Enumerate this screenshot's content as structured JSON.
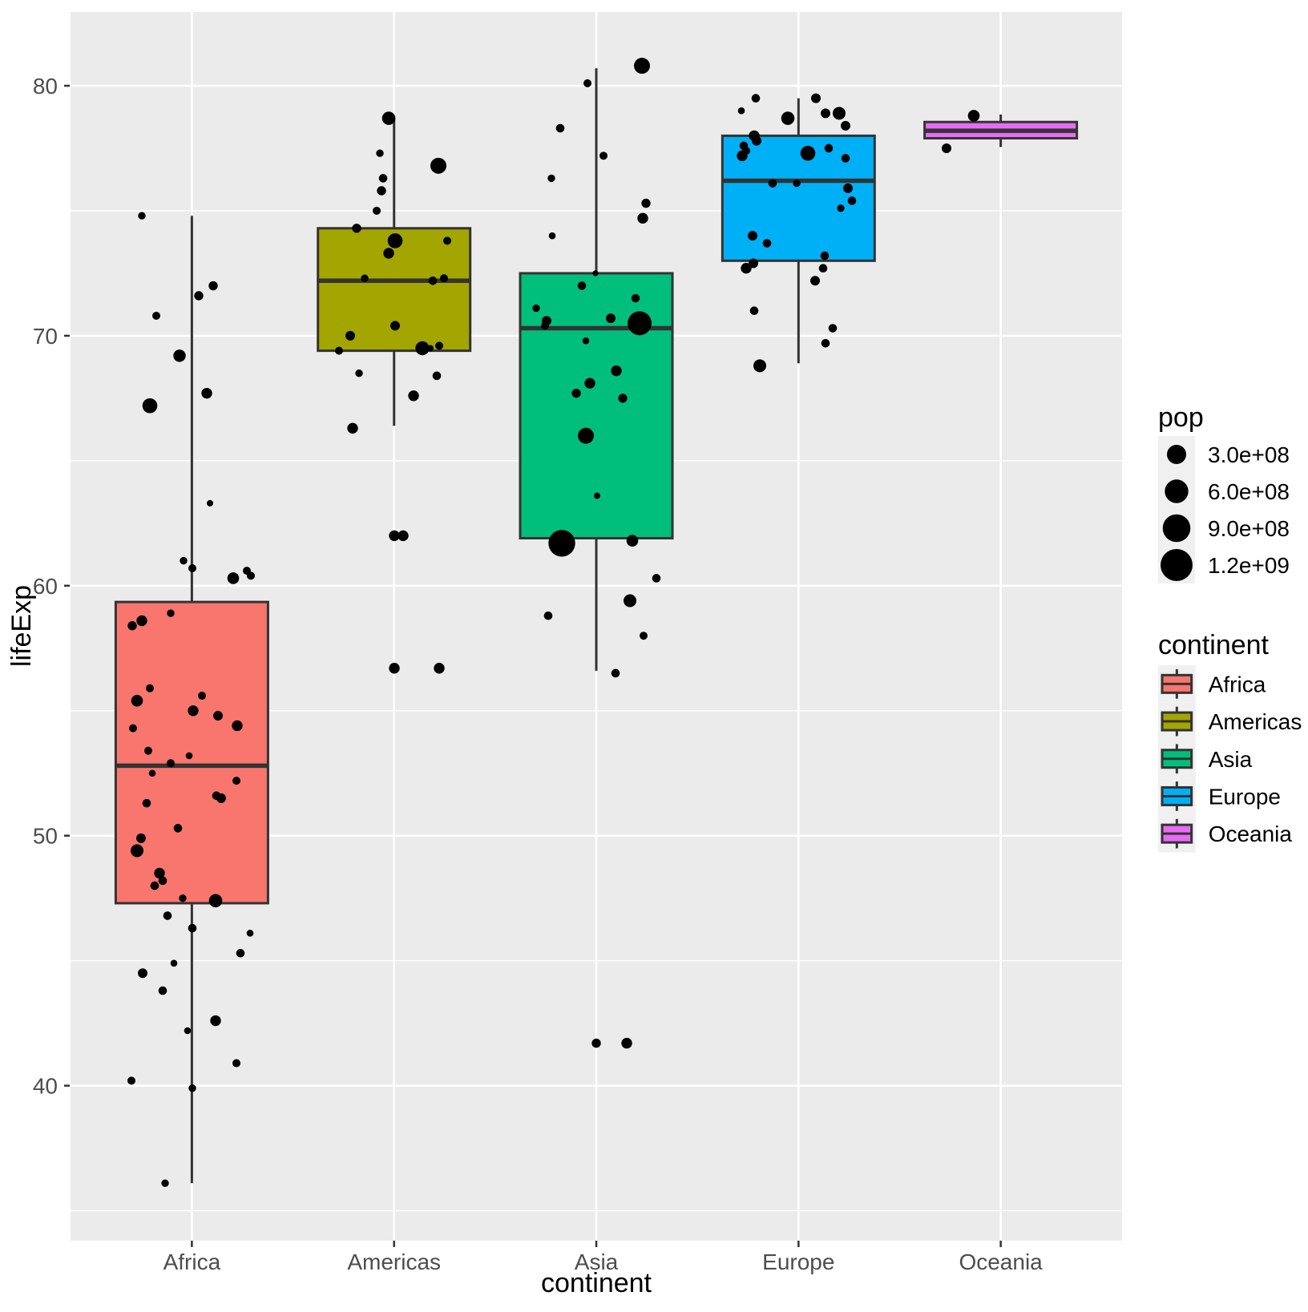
{
  "chart_data": {
    "type": "boxplot-jitter",
    "title": "",
    "xlabel": "continent",
    "ylabel": "lifeExp",
    "grid": true,
    "colors": {
      "panel_bg": "#EBEBEB",
      "grid_major": "#FFFFFF",
      "grid_minor": "#FFFFFF",
      "box_stroke": "#333333",
      "point": "#000000",
      "tick_text": "#4D4D4D",
      "legend_key_bg": "#F0F0F0"
    },
    "axis": {
      "y": {
        "range": [
          33.8,
          82.95
        ],
        "ticks": [
          40,
          50,
          60,
          70,
          80
        ],
        "minor": [
          35,
          45,
          55,
          65,
          75
        ]
      }
    },
    "categories": [
      {
        "name": "Africa",
        "color": "#F8766D",
        "box": {
          "min": 36.1,
          "q1": 47.3,
          "median": 52.8,
          "q3": 59.35,
          "max": 74.8
        },
        "points": [
          [
            177,
            74.8,
            4.7
          ],
          [
            248,
            71.6,
            5.7
          ],
          [
            266,
            72.0,
            5.7
          ],
          [
            195,
            70.8,
            5
          ],
          [
            224,
            69.2,
            7.7
          ],
          [
            258,
            67.7,
            6.7
          ],
          [
            187,
            67.2,
            9.3
          ],
          [
            262,
            63.3,
            4
          ],
          [
            229,
            61.0,
            4.7
          ],
          [
            240,
            60.7,
            5
          ],
          [
            291,
            60.3,
            7.3
          ],
          [
            308,
            60.6,
            5
          ],
          [
            313,
            60.4,
            5
          ],
          [
            213,
            58.9,
            4.7
          ],
          [
            165,
            58.4,
            5.7
          ],
          [
            177,
            58.6,
            6.7
          ],
          [
            187,
            55.9,
            5
          ],
          [
            171,
            55.4,
            7.3
          ],
          [
            252,
            55.6,
            5
          ],
          [
            241,
            55.0,
            6.7
          ],
          [
            272,
            54.8,
            6
          ],
          [
            296,
            54.4,
            6.7
          ],
          [
            166,
            54.3,
            5
          ],
          [
            185,
            53.4,
            5
          ],
          [
            213,
            52.9,
            5
          ],
          [
            236,
            53.2,
            4.3
          ],
          [
            190,
            52.5,
            4.3
          ],
          [
            295,
            52.2,
            5
          ],
          [
            270,
            51.6,
            5.3
          ],
          [
            276,
            51.5,
            6
          ],
          [
            183,
            51.3,
            5.3
          ],
          [
            222,
            50.3,
            5.3
          ],
          [
            176,
            49.9,
            6
          ],
          [
            171,
            49.4,
            8
          ],
          [
            199,
            48.5,
            6.7
          ],
          [
            203,
            48.2,
            5.3
          ],
          [
            193,
            48.0,
            5.3
          ],
          [
            228,
            47.5,
            4.7
          ],
          [
            269,
            47.4,
            8.3
          ],
          [
            209,
            46.8,
            5.3
          ],
          [
            240,
            46.3,
            5.3
          ],
          [
            312,
            46.1,
            4.3
          ],
          [
            300,
            45.3,
            5.3
          ],
          [
            217,
            44.9,
            4.3
          ],
          [
            178,
            44.5,
            6
          ],
          [
            203,
            43.8,
            5.3
          ],
          [
            269,
            42.6,
            6.7
          ],
          [
            234,
            42.2,
            4.3
          ],
          [
            295,
            40.9,
            5
          ],
          [
            164,
            40.2,
            5
          ],
          [
            240,
            39.9,
            4.7
          ],
          [
            206,
            36.1,
            4.7
          ]
        ]
      },
      {
        "name": "Americas",
        "color": "#A3A500",
        "box": {
          "min": 66.4,
          "q1": 69.4,
          "median": 72.2,
          "q3": 74.3,
          "max": 78.7
        },
        "points": [
          [
            485,
            78.7,
            8.3
          ],
          [
            474,
            77.3,
            4.7
          ],
          [
            547,
            76.8,
            10
          ],
          [
            478,
            76.3,
            5.3
          ],
          [
            476,
            75.8,
            5.7
          ],
          [
            470,
            75.0,
            5
          ],
          [
            445,
            74.3,
            5.7
          ],
          [
            493,
            73.8,
            9.3
          ],
          [
            558,
            73.8,
            5
          ],
          [
            485,
            73.3,
            6.7
          ],
          [
            455,
            72.3,
            4.7
          ],
          [
            540,
            72.2,
            5.3
          ],
          [
            554,
            72.3,
            5
          ],
          [
            493,
            70.4,
            6
          ],
          [
            437,
            70.0,
            6
          ],
          [
            423,
            69.4,
            5
          ],
          [
            527,
            69.5,
            8.7
          ],
          [
            537,
            69.5,
            4
          ],
          [
            548,
            69.6,
            5
          ],
          [
            448,
            68.5,
            4.7
          ],
          [
            545,
            68.4,
            5.3
          ],
          [
            516,
            67.6,
            6.7
          ],
          [
            440,
            66.3,
            6.7
          ],
          [
            492,
            62.0,
            6.7
          ],
          [
            503,
            62.0,
            6.7
          ],
          [
            492,
            56.7,
            6.7
          ],
          [
            548,
            56.7,
            6.7
          ]
        ]
      },
      {
        "name": "Asia",
        "color": "#00BF7D",
        "box": {
          "min": 56.6,
          "q1": 61.9,
          "median": 70.3,
          "q3": 72.5,
          "max": 80.7
        },
        "points": [
          [
            801,
            80.8,
            10
          ],
          [
            733,
            80.1,
            5
          ],
          [
            699,
            78.3,
            5.3
          ],
          [
            753,
            77.2,
            5
          ],
          [
            688,
            76.3,
            4.7
          ],
          [
            806,
            75.3,
            5.7
          ],
          [
            802,
            74.7,
            6.7
          ],
          [
            689,
            74.0,
            4.3
          ],
          [
            743,
            72.5,
            3.7
          ],
          [
            726,
            72.0,
            5.3
          ],
          [
            793,
            71.5,
            5.3
          ],
          [
            669,
            71.1,
            4.7
          ],
          [
            682,
            70.6,
            6
          ],
          [
            762,
            70.7,
            6
          ],
          [
            798,
            70.5,
            15
          ],
          [
            680,
            70.4,
            5
          ],
          [
            731,
            69.8,
            4.3
          ],
          [
            769,
            68.6,
            6.7
          ],
          [
            736,
            68.1,
            6.7
          ],
          [
            719,
            67.7,
            5.7
          ],
          [
            777,
            67.5,
            5.7
          ],
          [
            731,
            66.0,
            10
          ],
          [
            745,
            63.6,
            4
          ],
          [
            701,
            61.7,
            16.7
          ],
          [
            789,
            61.8,
            7.3
          ],
          [
            819,
            60.3,
            5.3
          ],
          [
            786,
            59.4,
            8
          ],
          [
            684,
            58.8,
            5.3
          ],
          [
            803,
            58.0,
            5
          ],
          [
            768,
            56.5,
            5.3
          ],
          [
            744,
            41.7,
            5.7
          ],
          [
            782,
            41.7,
            6.7
          ]
        ]
      },
      {
        "name": "Europe",
        "color": "#00B0F6",
        "box": {
          "min": 68.9,
          "q1": 73.0,
          "median": 76.2,
          "q3": 78.0,
          "max": 79.5
        },
        "points": [
          [
            943,
            79.5,
            5.3
          ],
          [
            925,
            79.0,
            4.3
          ],
          [
            983,
            78.7,
            8.3
          ],
          [
            1018,
            79.5,
            6
          ],
          [
            1030,
            78.9,
            6
          ],
          [
            1047,
            78.9,
            8
          ],
          [
            1055,
            78.4,
            6
          ],
          [
            941,
            78.0,
            6.7
          ],
          [
            944,
            77.8,
            6
          ],
          [
            928,
            77.6,
            5.3
          ],
          [
            926,
            77.2,
            6.7
          ],
          [
            931,
            77.4,
            5
          ],
          [
            1008,
            77.3,
            9.3
          ],
          [
            1034,
            77.5,
            5.3
          ],
          [
            1055,
            77.1,
            5.3
          ],
          [
            964,
            76.1,
            5.3
          ],
          [
            994,
            76.1,
            4.7
          ],
          [
            1058,
            75.9,
            6
          ],
          [
            1063,
            75.4,
            5.3
          ],
          [
            1049,
            75.1,
            4.7
          ],
          [
            939,
            74.0,
            6
          ],
          [
            957,
            73.7,
            5.3
          ],
          [
            1029,
            73.2,
            5.3
          ],
          [
            940,
            72.9,
            6
          ],
          [
            931,
            72.7,
            6.7
          ],
          [
            1027,
            72.7,
            5.3
          ],
          [
            1017,
            72.2,
            6
          ],
          [
            941,
            71.0,
            5.3
          ],
          [
            1039,
            70.3,
            5.3
          ],
          [
            1030,
            69.7,
            5.3
          ],
          [
            948,
            68.8,
            8
          ]
        ]
      },
      {
        "name": "Oceania",
        "color": "#E76BF3",
        "box": {
          "min": 77.55,
          "q1": 77.9,
          "median": 78.2,
          "q3": 78.55,
          "max": 78.85
        },
        "points": [
          [
            1215,
            78.8,
            7.3
          ],
          [
            1181,
            77.5,
            6
          ]
        ]
      }
    ],
    "legend_pop": {
      "title": "pop",
      "entries": [
        {
          "label": "3.0e+08",
          "r": 12
        },
        {
          "label": "6.0e+08",
          "r": 14.7
        },
        {
          "label": "9.0e+08",
          "r": 17.3
        },
        {
          "label": "1.2e+09",
          "r": 20
        }
      ]
    },
    "legend_continent": {
      "title": "continent",
      "entries": [
        {
          "label": "Africa",
          "color": "#F8766D"
        },
        {
          "label": "Americas",
          "color": "#A3A500"
        },
        {
          "label": "Asia",
          "color": "#00BF7D"
        },
        {
          "label": "Europe",
          "color": "#00B0F6"
        },
        {
          "label": "Oceania",
          "color": "#E76BF3"
        }
      ]
    }
  }
}
